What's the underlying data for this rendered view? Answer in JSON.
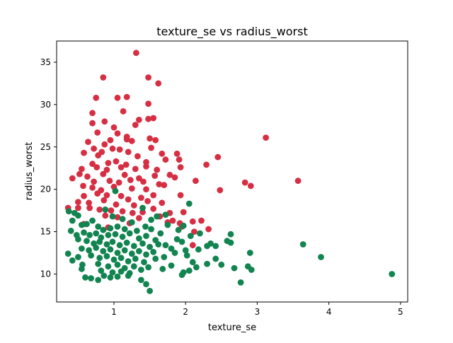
{
  "chart_data": {
    "type": "scatter",
    "title": "texture_se vs radius_worst",
    "xlabel": "texture_se",
    "ylabel": "radius_worst",
    "xlim": [
      0.2,
      5.1
    ],
    "ylim": [
      6.7,
      37.5
    ],
    "xticks": [
      1,
      2,
      3,
      4,
      5
    ],
    "yticks": [
      10,
      15,
      20,
      25,
      30,
      35
    ],
    "grid": false,
    "legend": "none",
    "series": [
      {
        "color": "#d62f44",
        "points": [
          [
            1.31,
            36.1
          ],
          [
            0.85,
            33.2
          ],
          [
            1.48,
            33.2
          ],
          [
            1.62,
            32.5
          ],
          [
            0.75,
            30.8
          ],
          [
            1.05,
            30.8
          ],
          [
            1.18,
            30.9
          ],
          [
            1.48,
            30.1
          ],
          [
            0.7,
            29.0
          ],
          [
            1.13,
            29.2
          ],
          [
            0.87,
            28.0
          ],
          [
            1.35,
            28.2
          ],
          [
            1.55,
            28.4
          ],
          [
            0.7,
            27.8
          ],
          [
            1.3,
            27.6
          ],
          [
            1.48,
            28.3
          ],
          [
            1.0,
            27.3
          ],
          [
            0.77,
            26.7
          ],
          [
            1.05,
            26.6
          ],
          [
            1.18,
            26.2
          ],
          [
            0.64,
            25.6
          ],
          [
            0.87,
            25.3
          ],
          [
            0.95,
            25.8
          ],
          [
            1.18,
            25.9
          ],
          [
            1.25,
            25.7
          ],
          [
            1.5,
            26.0
          ],
          [
            1.58,
            25.8
          ],
          [
            0.72,
            24.8
          ],
          [
            0.83,
            24.4
          ],
          [
            0.98,
            24.8
          ],
          [
            1.08,
            24.7
          ],
          [
            1.2,
            24.4
          ],
          [
            1.33,
            23.9
          ],
          [
            1.52,
            24.9
          ],
          [
            1.67,
            24.2
          ],
          [
            0.58,
            24.3
          ],
          [
            0.78,
            24.0
          ],
          [
            1.88,
            24.2
          ],
          [
            1.91,
            23.5
          ],
          [
            2.45,
            23.8
          ],
          [
            0.7,
            23.0
          ],
          [
            0.92,
            23.1
          ],
          [
            1.03,
            23.3
          ],
          [
            1.17,
            22.9
          ],
          [
            1.45,
            23.2
          ],
          [
            1.72,
            23.5
          ],
          [
            0.55,
            22.4
          ],
          [
            0.76,
            22.6
          ],
          [
            0.9,
            22.3
          ],
          [
            1.1,
            22.6
          ],
          [
            1.3,
            22.4
          ],
          [
            1.45,
            22.7
          ],
          [
            1.6,
            22.3
          ],
          [
            1.93,
            22.6
          ],
          [
            2.29,
            22.9
          ],
          [
            0.52,
            21.8
          ],
          [
            0.63,
            21.5
          ],
          [
            0.85,
            21.8
          ],
          [
            1.15,
            21.7
          ],
          [
            1.35,
            21.3
          ],
          [
            1.57,
            21.6
          ],
          [
            1.78,
            21.7
          ],
          [
            1.85,
            21.4
          ],
          [
            0.42,
            21.3
          ],
          [
            0.72,
            20.9
          ],
          [
            0.94,
            21.0
          ],
          [
            1.07,
            20.8
          ],
          [
            1.23,
            21.1
          ],
          [
            1.41,
            20.9
          ],
          [
            1.63,
            20.6
          ],
          [
            1.7,
            20.5
          ],
          [
            2.14,
            21.0
          ],
          [
            0.57,
            20.4
          ],
          [
            0.7,
            20.2
          ],
          [
            0.82,
            19.9
          ],
          [
            1.0,
            20.3
          ],
          [
            1.25,
            20.1
          ],
          [
            1.45,
            20.0
          ],
          [
            2.48,
            19.9
          ],
          [
            2.83,
            20.8
          ],
          [
            2.91,
            20.4
          ],
          [
            3.57,
            21.0
          ],
          [
            0.58,
            19.2
          ],
          [
            0.77,
            19.5
          ],
          [
            0.9,
            19.3
          ],
          [
            1.1,
            19.2
          ],
          [
            1.2,
            18.8
          ],
          [
            1.38,
            19.0
          ],
          [
            1.55,
            19.3
          ],
          [
            1.93,
            19.3
          ],
          [
            0.5,
            18.5
          ],
          [
            0.65,
            18.4
          ],
          [
            0.86,
            18.7
          ],
          [
            1.03,
            18.2
          ],
          [
            1.28,
            18.1
          ],
          [
            1.47,
            18.6
          ],
          [
            1.67,
            18.4
          ],
          [
            0.36,
            17.8
          ],
          [
            0.5,
            17.8
          ],
          [
            0.66,
            17.8
          ],
          [
            0.8,
            17.6
          ],
          [
            0.96,
            17.5
          ],
          [
            1.12,
            17.4
          ],
          [
            1.26,
            17.2
          ],
          [
            1.4,
            17.3
          ],
          [
            1.55,
            17.7
          ],
          [
            1.78,
            17.2
          ],
          [
            1.97,
            17.3
          ],
          [
            0.88,
            16.9
          ],
          [
            1.05,
            16.7
          ],
          [
            1.35,
            16.6
          ],
          [
            1.64,
            16.8
          ],
          [
            1.82,
            16.3
          ],
          [
            1.75,
            16.1
          ],
          [
            1.92,
            16.0
          ],
          [
            2.1,
            16.2
          ],
          [
            2.22,
            16.3
          ],
          [
            2.32,
            15.3
          ],
          [
            2.12,
            15.0
          ],
          [
            1.95,
            15.6
          ],
          [
            0.58,
            15.9
          ],
          [
            0.92,
            15.5
          ],
          [
            1.22,
            16.0
          ],
          [
            2.1,
            13.4
          ],
          [
            3.12,
            26.1
          ]
        ]
      },
      {
        "color": "#118450",
        "points": [
          [
            0.37,
            17.4
          ],
          [
            0.45,
            17.2
          ],
          [
            0.5,
            16.9
          ],
          [
            0.42,
            16.3
          ],
          [
            0.55,
            15.8
          ],
          [
            0.4,
            15.1
          ],
          [
            0.48,
            14.6
          ],
          [
            0.36,
            12.4
          ],
          [
            0.42,
            11.6
          ],
          [
            0.5,
            12.0
          ],
          [
            0.56,
            11.1
          ],
          [
            0.55,
            10.6
          ],
          [
            0.6,
            9.6
          ],
          [
            0.68,
            9.5
          ],
          [
            0.78,
            9.3
          ],
          [
            0.86,
            9.8
          ],
          [
            0.95,
            9.6
          ],
          [
            1.05,
            9.7
          ],
          [
            1.2,
            9.8
          ],
          [
            1.38,
            9.3
          ],
          [
            1.45,
            8.8
          ],
          [
            1.5,
            8.0
          ],
          [
            1.95,
            9.9
          ],
          [
            1.97,
            10.2
          ],
          [
            2.05,
            10.4
          ],
          [
            2.15,
            10.8
          ],
          [
            2.3,
            11.2
          ],
          [
            2.42,
            11.8
          ],
          [
            2.5,
            11.1
          ],
          [
            2.68,
            10.7
          ],
          [
            2.77,
            9.0
          ],
          [
            2.87,
            10.9
          ],
          [
            2.92,
            10.5
          ],
          [
            2.9,
            12.5
          ],
          [
            3.64,
            13.5
          ],
          [
            3.89,
            12.0
          ],
          [
            4.88,
            10.0
          ],
          [
            2.58,
            13.9
          ],
          [
            2.63,
            14.7
          ],
          [
            2.63,
            13.7
          ],
          [
            2.42,
            13.3
          ],
          [
            2.3,
            13.3
          ],
          [
            2.18,
            12.9
          ],
          [
            2.0,
            12.8
          ],
          [
            1.85,
            12.5
          ],
          [
            2.07,
            14.5
          ],
          [
            2.2,
            14.8
          ],
          [
            2.05,
            18.3
          ],
          [
            1.97,
            15.7
          ],
          [
            1.9,
            15.2
          ],
          [
            1.75,
            15.8
          ],
          [
            1.65,
            14.8
          ],
          [
            1.58,
            14.0
          ],
          [
            1.72,
            13.4
          ],
          [
            1.8,
            13.0
          ],
          [
            1.88,
            14.1
          ],
          [
            1.52,
            16.4
          ],
          [
            1.44,
            15.6
          ],
          [
            1.4,
            17.8
          ],
          [
            1.02,
            19.8
          ],
          [
            0.88,
            17.6
          ],
          [
            0.98,
            16.8
          ],
          [
            1.12,
            16.5
          ],
          [
            1.25,
            16.1
          ],
          [
            0.7,
            16.3
          ],
          [
            0.62,
            15.9
          ],
          [
            0.78,
            15.6
          ],
          [
            0.85,
            15.2
          ],
          [
            0.95,
            15.4
          ],
          [
            1.05,
            15.6
          ],
          [
            1.15,
            15.3
          ],
          [
            1.32,
            15.1
          ],
          [
            1.52,
            15.3
          ],
          [
            0.58,
            14.9
          ],
          [
            0.66,
            14.6
          ],
          [
            0.75,
            14.8
          ],
          [
            0.82,
            14.3
          ],
          [
            0.92,
            14.6
          ],
          [
            1.02,
            14.7
          ],
          [
            1.12,
            14.4
          ],
          [
            1.22,
            14.8
          ],
          [
            1.35,
            14.2
          ],
          [
            1.45,
            14.5
          ],
          [
            0.5,
            14.1
          ],
          [
            0.62,
            13.9
          ],
          [
            0.72,
            13.6
          ],
          [
            0.8,
            13.8
          ],
          [
            0.9,
            13.5
          ],
          [
            0.98,
            13.8
          ],
          [
            1.08,
            13.4
          ],
          [
            1.18,
            13.7
          ],
          [
            1.28,
            13.3
          ],
          [
            1.4,
            13.6
          ],
          [
            1.5,
            13.2
          ],
          [
            1.62,
            13.5
          ],
          [
            0.55,
            13.0
          ],
          [
            0.65,
            12.8
          ],
          [
            0.75,
            13.1
          ],
          [
            0.85,
            12.7
          ],
          [
            0.95,
            12.9
          ],
          [
            1.05,
            12.5
          ],
          [
            1.15,
            12.8
          ],
          [
            1.25,
            12.4
          ],
          [
            1.35,
            12.7
          ],
          [
            1.45,
            12.3
          ],
          [
            1.55,
            12.6
          ],
          [
            0.68,
            12.2
          ],
          [
            0.8,
            11.9
          ],
          [
            0.9,
            12.1
          ],
          [
            1.0,
            11.7
          ],
          [
            1.1,
            11.9
          ],
          [
            1.2,
            11.5
          ],
          [
            1.3,
            11.8
          ],
          [
            1.42,
            11.4
          ],
          [
            0.78,
            11.2
          ],
          [
            0.92,
            10.9
          ],
          [
            1.05,
            11.1
          ],
          [
            1.15,
            10.7
          ],
          [
            1.28,
            10.9
          ],
          [
            1.38,
            10.5
          ],
          [
            1.48,
            10.8
          ],
          [
            0.82,
            10.4
          ],
          [
            0.98,
            10.2
          ],
          [
            1.1,
            10.3
          ],
          [
            1.22,
            10.1
          ],
          [
            1.58,
            11.8
          ],
          [
            1.7,
            12.0
          ],
          [
            1.8,
            11.0
          ],
          [
            1.68,
            10.6
          ],
          [
            2.02,
            12.2
          ],
          [
            2.1,
            11.4
          ],
          [
            2.35,
            13.6
          ],
          [
            1.95,
            13.8
          ],
          [
            1.6,
            16.8
          ],
          [
            1.72,
            17.0
          ]
        ]
      }
    ]
  }
}
